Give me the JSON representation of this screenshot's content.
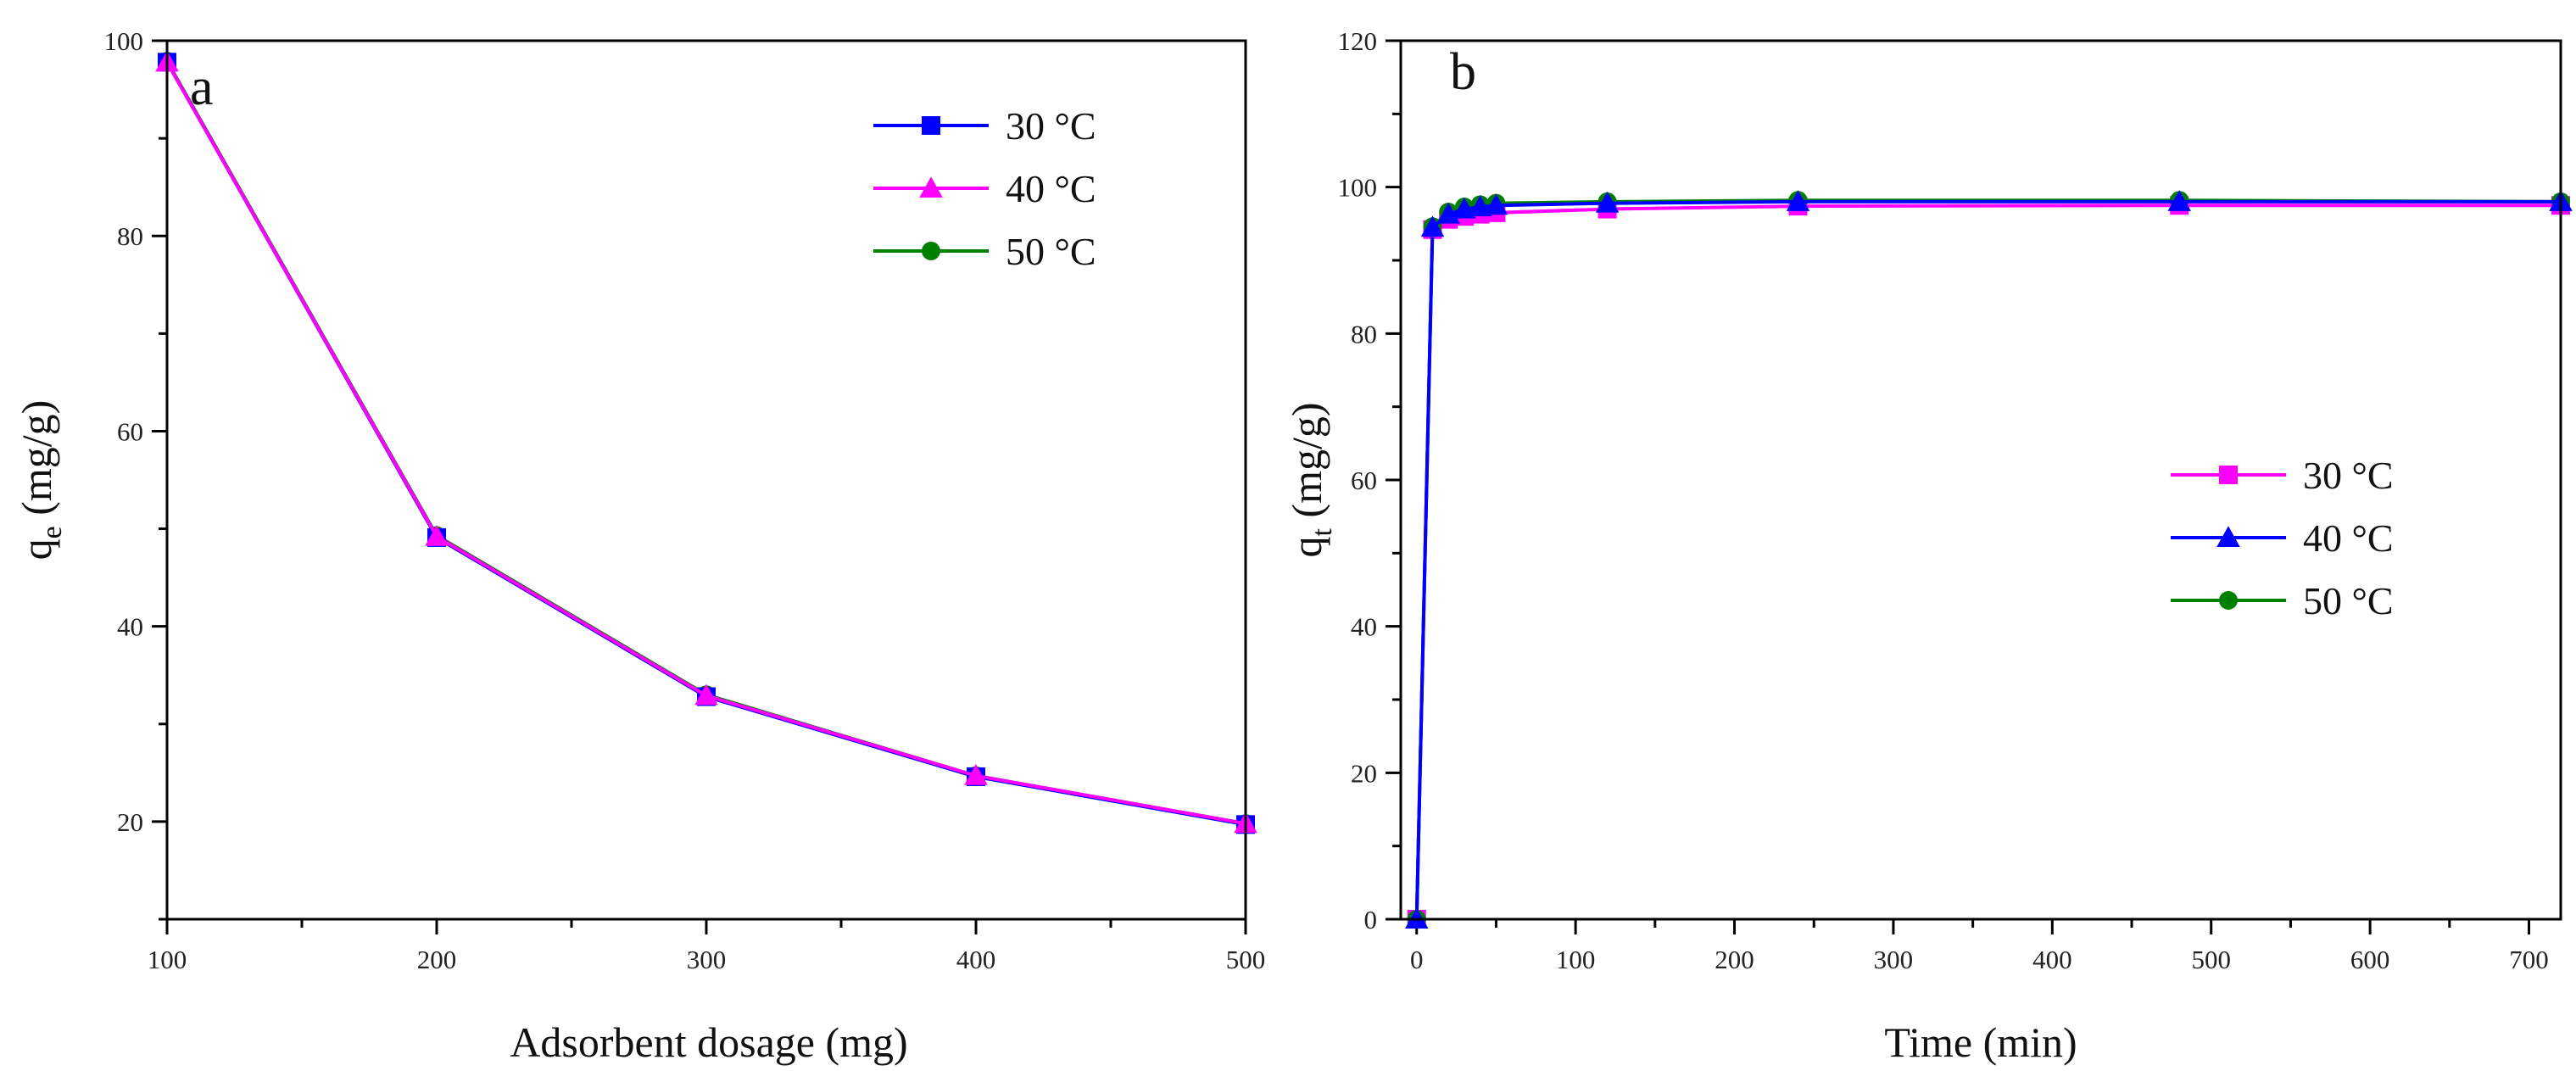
{
  "chart_data": [
    {
      "panel": "a",
      "type": "line",
      "xlabel": "Adsorbent dosage (mg)",
      "ylabel_main": "q",
      "ylabel_sub": "e",
      "ylabel_unit": " (mg/g)",
      "xlim": [
        100,
        500
      ],
      "ylim": [
        10,
        100
      ],
      "xticks": [
        100,
        200,
        300,
        400,
        500
      ],
      "yticks": [
        20,
        40,
        60,
        80,
        100
      ],
      "x_minor_step": 50,
      "y_minor_step": 10,
      "legend_position": "top-right",
      "x": [
        100,
        200,
        300,
        400,
        500
      ],
      "series": [
        {
          "name": "30 °C",
          "color": "#0000ff",
          "marker": "square",
          "values": [
            97.8,
            49.1,
            32.8,
            24.6,
            19.7
          ]
        },
        {
          "name": "40 °C",
          "color": "#ff00ff",
          "marker": "triangle",
          "values": [
            97.8,
            49.2,
            32.9,
            24.7,
            19.8
          ]
        },
        {
          "name": "50 °C",
          "color": "#008000",
          "marker": "circle",
          "values": [
            97.9,
            49.3,
            33.0,
            24.7,
            19.8
          ]
        }
      ],
      "draw_order": [
        2,
        0,
        1
      ]
    },
    {
      "panel": "b",
      "type": "line",
      "xlabel": "Time (min)",
      "ylabel_main": "q",
      "ylabel_sub": "t",
      "ylabel_unit": " (mg/g)",
      "xlim": [
        -10,
        720
      ],
      "ylim": [
        0,
        120
      ],
      "xticks": [
        0,
        100,
        200,
        300,
        400,
        500,
        600,
        700
      ],
      "yticks": [
        0,
        20,
        40,
        60,
        80,
        100,
        120
      ],
      "x_minor_step": 50,
      "y_minor_step": 10,
      "legend_position": "center-right",
      "x": [
        0,
        10,
        20,
        30,
        40,
        50,
        120,
        240,
        480,
        720
      ],
      "series": [
        {
          "name": "30 °C",
          "color": "#ff00ff",
          "marker": "square",
          "values": [
            0,
            94.2,
            95.6,
            96.0,
            96.3,
            96.5,
            97.0,
            97.4,
            97.5,
            97.5
          ]
        },
        {
          "name": "40 °C",
          "color": "#0000ff",
          "marker": "triangle",
          "values": [
            0,
            94.5,
            96.3,
            97.0,
            97.3,
            97.5,
            97.8,
            98.0,
            98.0,
            98.0
          ]
        },
        {
          "name": "50 °C",
          "color": "#008000",
          "marker": "circle",
          "values": [
            0,
            94.6,
            96.6,
            97.3,
            97.6,
            97.8,
            98.0,
            98.2,
            98.2,
            98.0
          ]
        }
      ],
      "draw_order": [
        0,
        2,
        1
      ]
    }
  ]
}
